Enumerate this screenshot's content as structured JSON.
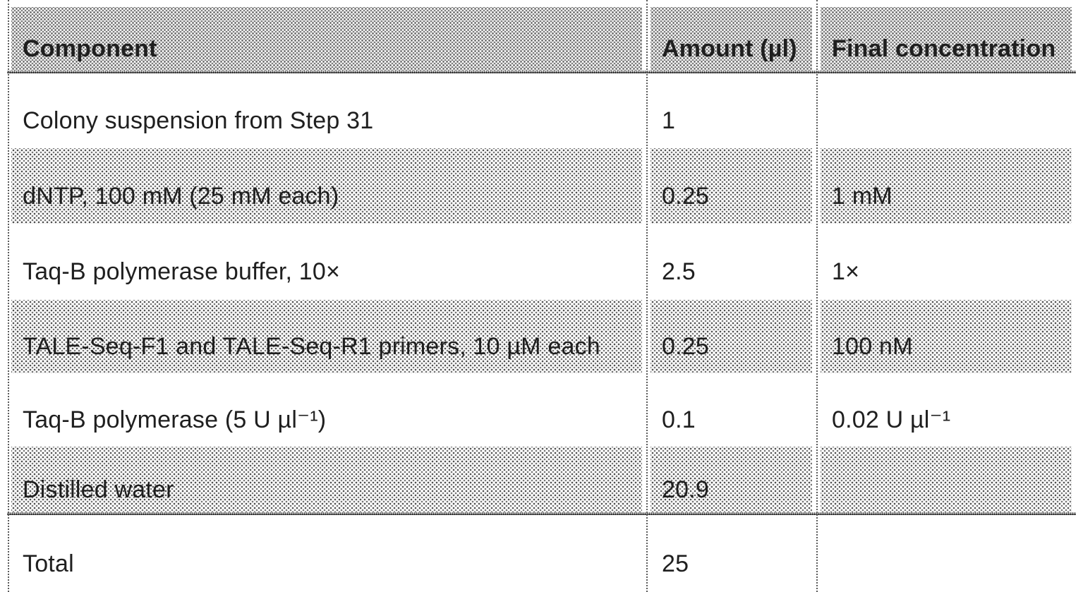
{
  "table": {
    "header": {
      "component": "Component",
      "amount": "Amount (µl)",
      "final_concentration": "Final concentration"
    },
    "rows": [
      {
        "component": "Colony suspension from Step 31",
        "amount": "1",
        "final_concentration": ""
      },
      {
        "component": "dNTP, 100 mM (25 mM each)",
        "amount": "0.25",
        "final_concentration": "1 mM"
      },
      {
        "component": "Taq-B polymerase buffer, 10×",
        "amount": "2.5",
        "final_concentration": "1×"
      },
      {
        "component": "TALE-Seq-F1 and TALE-Seq-R1 primers, 10 µM each",
        "amount": "0.25",
        "final_concentration": "100 nM"
      },
      {
        "component": "Taq-B polymerase (5 U µl⁻¹)",
        "amount": "0.1",
        "final_concentration": "0.02 U µl⁻¹"
      },
      {
        "component": "Distilled water",
        "amount": "20.9",
        "final_concentration": ""
      }
    ],
    "total": {
      "component": "Total",
      "amount": "25",
      "final_concentration": ""
    }
  },
  "style": {
    "text_color": "#1f1f1f",
    "halftone_dot_color": "#000000",
    "rule_color": "#242424",
    "divider_color": "#5b5b5b",
    "background_color": "#ffffff"
  }
}
